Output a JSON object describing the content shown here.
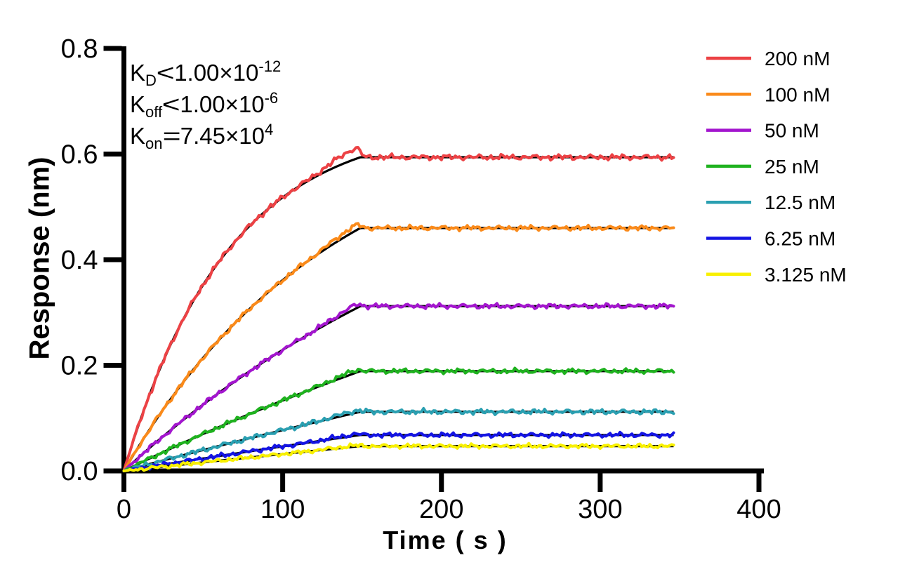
{
  "chart_data": {
    "type": "line",
    "title": "",
    "xlabel": "Time ( s )",
    "ylabel": "Response (nm)",
    "xlim": [
      0,
      400
    ],
    "ylim": [
      0,
      0.8
    ],
    "xticks": [
      "0",
      "100",
      "200",
      "300",
      "400"
    ],
    "yticks": [
      "0.0",
      "0.2",
      "0.4",
      "0.6",
      "0.8"
    ],
    "grid": false,
    "legend_position": "right-outside",
    "association_end_s": 149,
    "trace_end_s": 347,
    "fit_line_color": "#000000",
    "kinetics": [
      {
        "param": "K",
        "sub": "D",
        "op": "<",
        "mantissa": "1.00×10",
        "exp": "-12"
      },
      {
        "param": "K",
        "sub": "off",
        "op": "<",
        "mantissa": "1.00×10",
        "exp": "-6"
      },
      {
        "param": "K",
        "sub": "on",
        "op": "=",
        "mantissa": "7.45×10",
        "exp": "4"
      }
    ],
    "series": [
      {
        "label": "200 nM",
        "concentration_nM": 200,
        "color": "#EC4245",
        "plateau": 0.594,
        "k_obs": 0.0152,
        "noise": 0.0055,
        "overshoot": 0.02
      },
      {
        "label": "100 nM",
        "concentration_nM": 100,
        "color": "#FA8A1A",
        "plateau": 0.46,
        "k_obs": 0.0076,
        "noise": 0.0048,
        "overshoot": 0.01
      },
      {
        "label": "50 nM",
        "concentration_nM": 50,
        "color": "#A316CE",
        "plateau": 0.312,
        "k_obs": 0.004,
        "noise": 0.0048,
        "overshoot": 0.007
      },
      {
        "label": "25 nM",
        "concentration_nM": 25,
        "color": "#1FB21F",
        "plateau": 0.189,
        "k_obs": 0.0021,
        "noise": 0.0046,
        "overshoot": 0.005
      },
      {
        "label": "12.5 nM",
        "concentration_nM": 12.5,
        "color": "#2A9FB1",
        "plateau": 0.112,
        "k_obs": 0.0011,
        "noise": 0.005,
        "overshoot": 0.004
      },
      {
        "label": "6.25 nM",
        "concentration_nM": 6.25,
        "color": "#1414E3",
        "plateau": 0.068,
        "k_obs": 0.0007,
        "noise": 0.0046,
        "overshoot": 0.003
      },
      {
        "label": "3.125 nM",
        "concentration_nM": 3.125,
        "color": "#F8F000",
        "plateau": 0.047,
        "k_obs": 0.0005,
        "noise": 0.0042,
        "overshoot": 0.002
      }
    ]
  }
}
